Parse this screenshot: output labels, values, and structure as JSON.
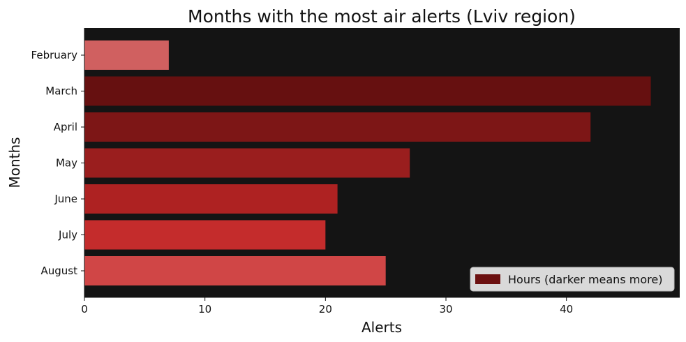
{
  "chart_data": {
    "type": "bar",
    "orientation": "horizontal",
    "title": "Months with the most air alerts (Lviv region)",
    "xlabel": "Alerts",
    "ylabel": "Months",
    "categories": [
      "February",
      "March",
      "April",
      "May",
      "June",
      "July",
      "August"
    ],
    "values": [
      7,
      47,
      42,
      27,
      21,
      20,
      25
    ],
    "bar_colors": [
      "#d06060",
      "#661010",
      "#7d1616",
      "#9a1e1e",
      "#ae2222",
      "#c42c2c",
      "#d04646"
    ],
    "xlim": [
      0,
      49.4
    ],
    "xticks": [
      0,
      10,
      20,
      30,
      40
    ],
    "plot_background": "#141414",
    "grid": false,
    "legend": {
      "label": "Hours (darker means more)",
      "color": "#6b1010",
      "placement": "lower-right"
    }
  }
}
